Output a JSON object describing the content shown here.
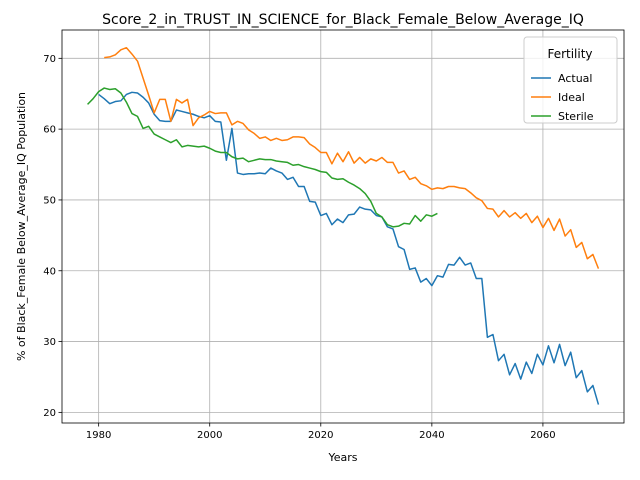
{
  "chart_data": {
    "type": "line",
    "title": "Score_2_in_TRUST_IN_SCIENCE_for_Black_Female_Below_Average_IQ",
    "xlabel": "Years",
    "ylabel": "% of Black_Female Below_Average_IQ Population",
    "xlim": [
      1973.4,
      2074.6
    ],
    "ylim": [
      18.5,
      74.0
    ],
    "xticks": [
      1980,
      2000,
      2020,
      2040,
      2060
    ],
    "yticks": [
      20,
      30,
      40,
      50,
      60,
      70
    ],
    "grid": true,
    "legend": {
      "title": "Fertility",
      "placement": "top-right"
    },
    "series": [
      {
        "name": "Actual",
        "color": "#1f77b4",
        "x": [
          1980,
          1981,
          1982,
          1983,
          1984,
          1985,
          1986,
          1987,
          1988,
          1989,
          1990,
          1991,
          1992,
          1993,
          1994,
          1995,
          1996,
          1997,
          1998,
          1999,
          2000,
          2001,
          2002,
          2003,
          2004,
          2005,
          2006,
          2007,
          2008,
          2009,
          2010,
          2011,
          2012,
          2013,
          2014,
          2015,
          2016,
          2017,
          2018,
          2019,
          2020,
          2021,
          2022,
          2023,
          2024,
          2025,
          2026,
          2027,
          2028,
          2029,
          2030,
          2031,
          2032,
          2033,
          2034,
          2035,
          2036,
          2037,
          2038,
          2039,
          2040,
          2041,
          2042,
          2043,
          2044,
          2045,
          2046,
          2047,
          2048,
          2049,
          2050,
          2051,
          2052,
          2053,
          2054,
          2055,
          2056,
          2057,
          2058,
          2059,
          2060,
          2061,
          2062,
          2063,
          2064,
          2065,
          2066,
          2067,
          2068,
          2069,
          2070
        ],
        "values": [
          64.9,
          64.3,
          63.6,
          63.9,
          64.0,
          64.9,
          65.2,
          65.1,
          64.5,
          63.7,
          62.1,
          61.2,
          61.1,
          61.1,
          62.7,
          62.5,
          62.3,
          62.1,
          61.8,
          61.6,
          61.9,
          61.1,
          61.0,
          55.6,
          60.1,
          53.8,
          53.6,
          53.7,
          53.7,
          53.8,
          53.7,
          54.5,
          54.1,
          53.8,
          52.9,
          53.2,
          51.9,
          51.9,
          49.8,
          49.7,
          47.8,
          48.1,
          46.5,
          47.3,
          46.8,
          47.9,
          48.0,
          49.0,
          48.7,
          48.6,
          47.8,
          47.6,
          46.2,
          45.9,
          43.4,
          43.0,
          40.2,
          40.4,
          38.4,
          38.9,
          37.9,
          39.3,
          39.1,
          40.9,
          40.8,
          41.9,
          40.8,
          41.1,
          38.9,
          38.9,
          30.6,
          31.0,
          27.3,
          28.2,
          25.3,
          26.9,
          24.7,
          27.1,
          25.5,
          28.2,
          26.7,
          29.4,
          27.0,
          29.6,
          26.6,
          28.5,
          24.9,
          25.9,
          22.9,
          23.8,
          21.1
        ]
      },
      {
        "name": "Ideal",
        "color": "#ff7f0e",
        "x": [
          1981,
          1982,
          1983,
          1984,
          1985,
          1986,
          1987,
          1988,
          1989,
          1990,
          1991,
          1992,
          1993,
          1994,
          1995,
          1996,
          1997,
          1998,
          1999,
          2000,
          2001,
          2002,
          2003,
          2004,
          2005,
          2006,
          2007,
          2008,
          2009,
          2010,
          2011,
          2012,
          2013,
          2014,
          2015,
          2016,
          2017,
          2018,
          2019,
          2020,
          2021,
          2022,
          2023,
          2024,
          2025,
          2026,
          2027,
          2028,
          2029,
          2030,
          2031,
          2032,
          2033,
          2034,
          2035,
          2036,
          2037,
          2038,
          2039,
          2040,
          2041,
          2042,
          2043,
          2044,
          2045,
          2046,
          2047,
          2048,
          2049,
          2050,
          2051,
          2052,
          2053,
          2054,
          2055,
          2056,
          2057,
          2058,
          2059,
          2060,
          2061,
          2062,
          2063,
          2064,
          2065,
          2066,
          2067,
          2068,
          2069,
          2070
        ],
        "values": [
          70.1,
          70.2,
          70.5,
          71.2,
          71.5,
          70.6,
          69.6,
          67.2,
          64.8,
          62.3,
          64.2,
          64.2,
          61.1,
          64.2,
          63.7,
          64.2,
          60.5,
          61.6,
          62.0,
          62.5,
          62.2,
          62.3,
          62.3,
          60.6,
          61.1,
          60.8,
          59.9,
          59.4,
          58.7,
          58.9,
          58.4,
          58.7,
          58.4,
          58.5,
          58.9,
          58.9,
          58.8,
          57.9,
          57.4,
          56.7,
          56.7,
          55.1,
          56.6,
          55.4,
          56.8,
          55.2,
          56.0,
          55.2,
          55.8,
          55.5,
          56.0,
          55.3,
          55.3,
          53.8,
          54.1,
          52.9,
          53.2,
          52.3,
          52.0,
          51.5,
          51.7,
          51.6,
          51.9,
          51.9,
          51.7,
          51.6,
          51.0,
          50.3,
          49.9,
          48.8,
          48.7,
          47.6,
          48.5,
          47.6,
          48.2,
          47.4,
          48.1,
          46.8,
          47.7,
          46.1,
          47.4,
          45.7,
          47.3,
          44.9,
          45.8,
          43.3,
          44.0,
          41.7,
          42.3,
          40.3
        ]
      },
      {
        "name": "Sterile",
        "color": "#2ca02c",
        "x": [
          1978,
          1979,
          1980,
          1981,
          1982,
          1983,
          1984,
          1985,
          1986,
          1987,
          1988,
          1989,
          1990,
          1991,
          1992,
          1993,
          1994,
          1995,
          1996,
          1997,
          1998,
          1999,
          2000,
          2001,
          2002,
          2003,
          2004,
          2005,
          2006,
          2007,
          2008,
          2009,
          2010,
          2011,
          2012,
          2013,
          2014,
          2015,
          2016,
          2017,
          2018,
          2019,
          2020,
          2021,
          2022,
          2023,
          2024,
          2025,
          2026,
          2027,
          2028,
          2029,
          2030,
          2031,
          2032,
          2033,
          2034,
          2035,
          2036,
          2037,
          2038,
          2039,
          2040,
          2041
        ],
        "values": [
          63.5,
          64.3,
          65.3,
          65.8,
          65.6,
          65.7,
          65.1,
          63.8,
          62.2,
          61.8,
          60.1,
          60.4,
          59.3,
          58.9,
          58.5,
          58.1,
          58.5,
          57.5,
          57.7,
          57.6,
          57.5,
          57.6,
          57.3,
          56.9,
          56.7,
          56.7,
          56.1,
          55.8,
          55.9,
          55.4,
          55.6,
          55.8,
          55.7,
          55.7,
          55.5,
          55.4,
          55.3,
          54.9,
          55.0,
          54.7,
          54.5,
          54.3,
          54.0,
          53.9,
          53.1,
          52.9,
          53.0,
          52.5,
          52.1,
          51.6,
          50.9,
          49.8,
          48.1,
          47.6,
          46.5,
          46.2,
          46.3,
          46.7,
          46.6,
          47.8,
          47.0,
          47.9,
          47.7,
          48.1
        ]
      }
    ]
  }
}
